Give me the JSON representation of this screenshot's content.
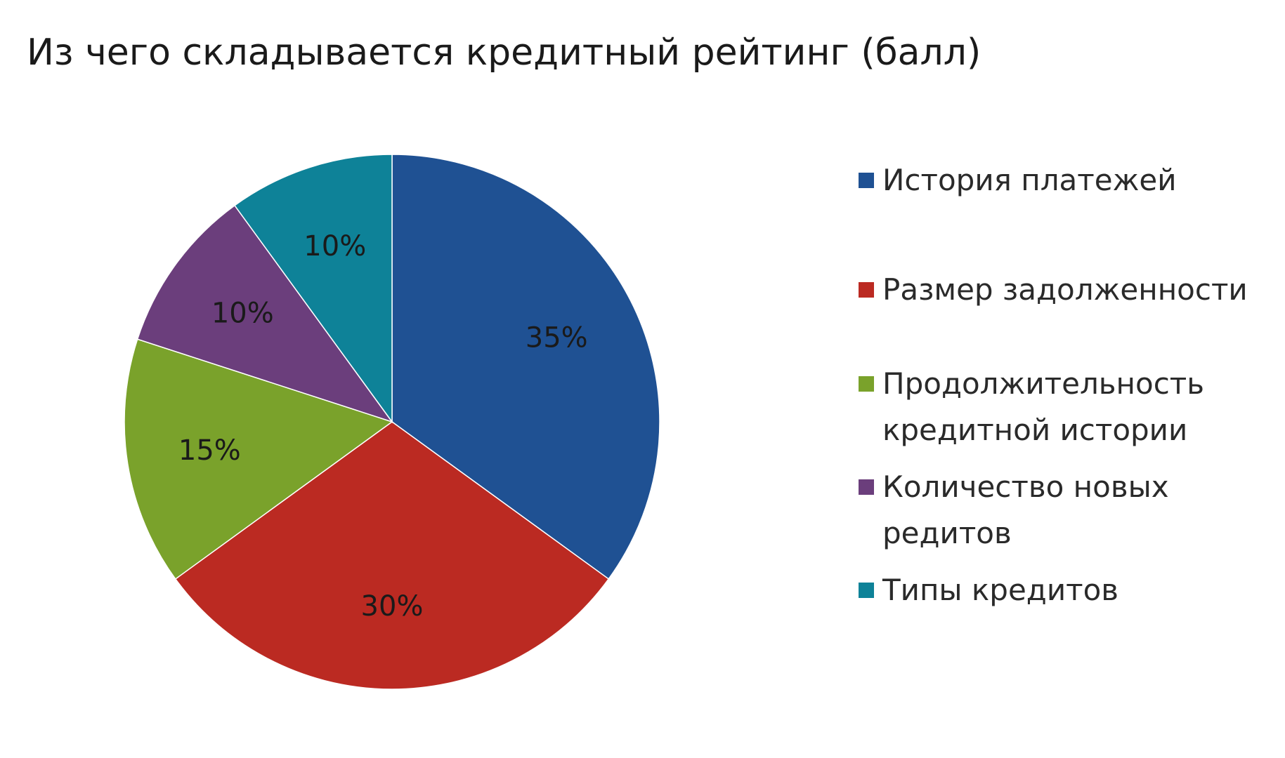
{
  "chart_data": {
    "type": "pie",
    "title": "Из чего складывается кредитный рейтинг (балл)",
    "legend_position": "right",
    "slices": [
      {
        "label": "История платежей",
        "value": 35,
        "data_label": "35%",
        "color": "#1f5193"
      },
      {
        "label": "Размер задолженности",
        "value": 30,
        "data_label": "30%",
        "color": "#bb2a22"
      },
      {
        "label": "Продолжительность кредитной истории",
        "value": 15,
        "data_label": "15%",
        "color": "#7aa22b"
      },
      {
        "label": "Количество новых редитов",
        "value": 10,
        "data_label": "10%",
        "color": "#6b3e7c"
      },
      {
        "label": "Типы кредитов",
        "value": 10,
        "data_label": "10%",
        "color": "#0e8298"
      }
    ]
  }
}
